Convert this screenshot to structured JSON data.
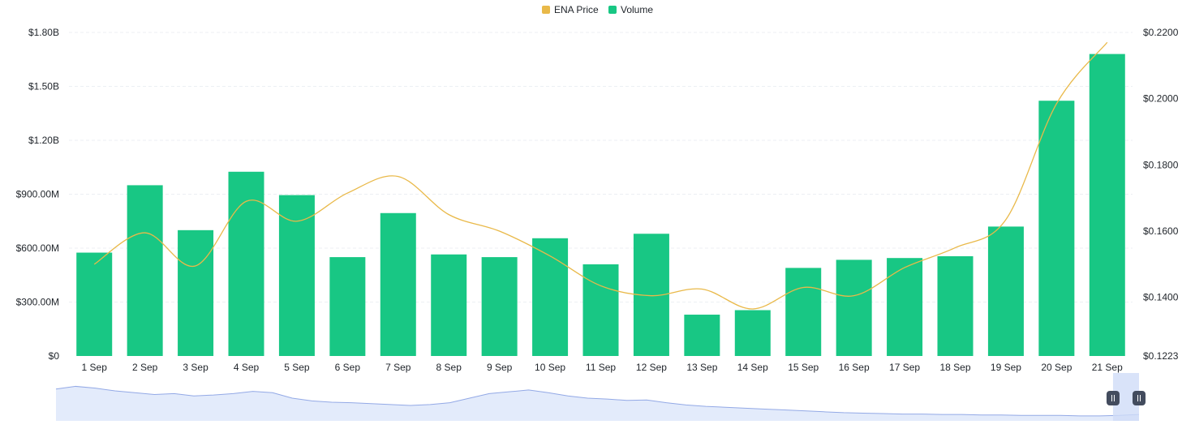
{
  "colors": {
    "price": "#e9b949",
    "volume": "#18c784",
    "grid": "#eceff3",
    "navigator_fill": "#e3ebfb",
    "navigator_line": "#93a9e6",
    "navigator_selection": "#cfdcf8",
    "handle": "#434c5e"
  },
  "legend": {
    "price_label": "ENA Price",
    "volume_label": "Volume"
  },
  "chart_data": {
    "type": "bar",
    "categories": [
      "1 Sep",
      "2 Sep",
      "3 Sep",
      "4 Sep",
      "5 Sep",
      "6 Sep",
      "7 Sep",
      "8 Sep",
      "9 Sep",
      "10 Sep",
      "11 Sep",
      "12 Sep",
      "13 Sep",
      "14 Sep",
      "15 Sep",
      "16 Sep",
      "17 Sep",
      "18 Sep",
      "19 Sep",
      "20 Sep",
      "21 Sep"
    ],
    "series": [
      {
        "name": "Volume",
        "type": "bar",
        "axis": "left",
        "values": [
          575000000,
          950000000,
          700000000,
          1025000000,
          895000000,
          550000000,
          795000000,
          565000000,
          550000000,
          655000000,
          510000000,
          680000000,
          230000000,
          255000000,
          490000000,
          535000000,
          545000000,
          555000000,
          720000000,
          1420000000,
          1680000000
        ]
      },
      {
        "name": "ENA Price",
        "type": "line",
        "axis": "right",
        "values": [
          0.15,
          0.1595,
          0.1495,
          0.169,
          0.163,
          0.1715,
          0.1765,
          0.165,
          0.16,
          0.1525,
          0.1435,
          0.1405,
          0.1425,
          0.1365,
          0.143,
          0.1405,
          0.149,
          0.155,
          0.1635,
          0.1985,
          0.217
        ]
      }
    ],
    "y_left": {
      "ylim": [
        0,
        1800000000
      ],
      "tick_labels": [
        "$0",
        "$300.00M",
        "$600.00M",
        "$900.00M",
        "$1.20B",
        "$1.50B",
        "$1.80B"
      ]
    },
    "y_right": {
      "ylim": [
        0.1223,
        0.22
      ],
      "tick_values": [
        0.1223,
        0.14,
        0.16,
        0.18,
        0.2,
        0.22
      ],
      "tick_labels": [
        "$0.1223",
        "$0.1400",
        "$0.1600",
        "$0.1800",
        "$0.2000",
        "$0.2200"
      ]
    },
    "grid": true,
    "legend_position": "top-center"
  },
  "navigator": {
    "values": [
      0.7,
      0.76,
      0.72,
      0.66,
      0.62,
      0.58,
      0.6,
      0.55,
      0.57,
      0.6,
      0.65,
      0.62,
      0.5,
      0.44,
      0.41,
      0.4,
      0.38,
      0.36,
      0.34,
      0.36,
      0.4,
      0.5,
      0.6,
      0.64,
      0.68,
      0.62,
      0.55,
      0.5,
      0.48,
      0.45,
      0.46,
      0.4,
      0.35,
      0.32,
      0.3,
      0.28,
      0.26,
      0.24,
      0.22,
      0.2,
      0.18,
      0.17,
      0.16,
      0.15,
      0.15,
      0.14,
      0.14,
      0.13,
      0.13,
      0.12,
      0.12,
      0.12,
      0.11,
      0.11,
      0.12,
      0.14
    ],
    "selection_start": 0.976,
    "selection_end": 1.0
  }
}
